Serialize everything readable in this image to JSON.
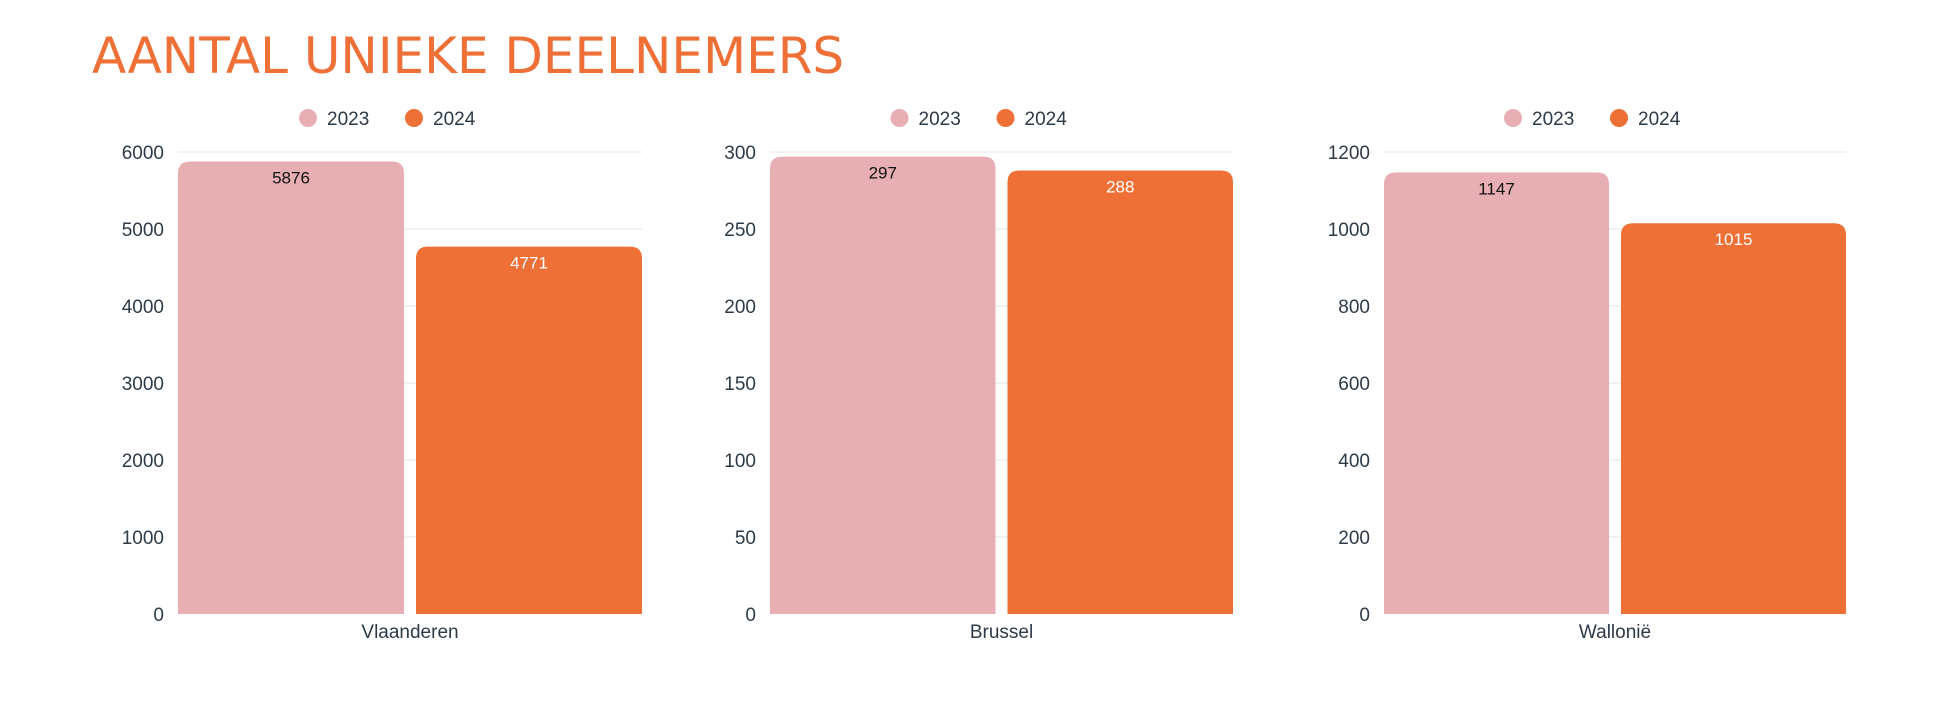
{
  "page": {
    "title": "AANTAL UNIEKE DEELNEMERS"
  },
  "colors": {
    "series_2023": "#e7afb3",
    "series_2024": "#ee7036",
    "title": "#ee7036",
    "grid": "#e5e5e5",
    "axis_text": "#2d3a48",
    "label_on_2023": "#111111",
    "label_on_2024": "#ffffff"
  },
  "chart_data": [
    {
      "type": "bar",
      "categories": [
        "Vlaanderen"
      ],
      "series": [
        {
          "name": "2023",
          "values": [
            5876
          ]
        },
        {
          "name": "2024",
          "values": [
            4771
          ]
        }
      ],
      "yticks": [
        "0",
        "1000",
        "2000",
        "3000",
        "4000",
        "5000",
        "6000"
      ],
      "ylim": [
        0,
        6000
      ],
      "grid": true,
      "legend": "top-center"
    },
    {
      "type": "bar",
      "categories": [
        "Brussel"
      ],
      "series": [
        {
          "name": "2023",
          "values": [
            297
          ]
        },
        {
          "name": "2024",
          "values": [
            288
          ]
        }
      ],
      "yticks": [
        "0",
        "50",
        "100",
        "150",
        "200",
        "250",
        "300"
      ],
      "ylim": [
        0,
        300
      ],
      "grid": true,
      "legend": "top-center"
    },
    {
      "type": "bar",
      "categories": [
        "Wallonië"
      ],
      "series": [
        {
          "name": "2023",
          "values": [
            1147
          ]
        },
        {
          "name": "2024",
          "values": [
            1015
          ]
        }
      ],
      "yticks": [
        "0",
        "200",
        "400",
        "600",
        "800",
        "1000",
        "1200"
      ],
      "ylim": [
        0,
        1200
      ],
      "grid": true,
      "legend": "top-center"
    }
  ]
}
